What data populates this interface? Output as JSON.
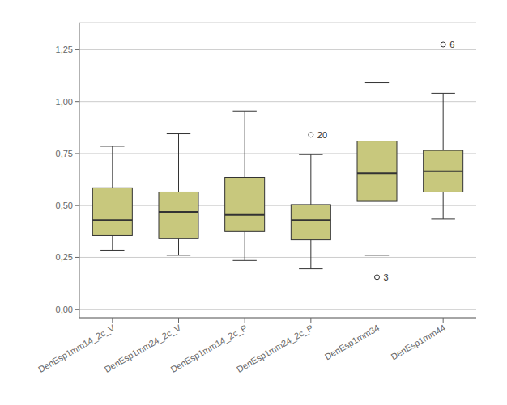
{
  "chart_data": {
    "type": "box",
    "categories": [
      "DenEsp1mm14_2c_V",
      "DenEsp1mm24_2c_V",
      "DenEsp1mm14_2c_P",
      "DenEsp1mm24_2c_P",
      "DenEsp1mm34",
      "DenEsp1mm44"
    ],
    "boxes": [
      {
        "q1": 0.355,
        "median": 0.43,
        "q3": 0.585,
        "whisker_low": 0.285,
        "whisker_high": 0.785,
        "outliers": [],
        "outlier_labels": []
      },
      {
        "q1": 0.34,
        "median": 0.47,
        "q3": 0.565,
        "whisker_low": 0.26,
        "whisker_high": 0.845,
        "outliers": [],
        "outlier_labels": []
      },
      {
        "q1": 0.375,
        "median": 0.455,
        "q3": 0.635,
        "whisker_low": 0.235,
        "whisker_high": 0.955,
        "outliers": [],
        "outlier_labels": []
      },
      {
        "q1": 0.335,
        "median": 0.43,
        "q3": 0.505,
        "whisker_low": 0.195,
        "whisker_high": 0.745,
        "outliers": [
          0.84
        ],
        "outlier_labels": [
          "20"
        ]
      },
      {
        "q1": 0.52,
        "median": 0.655,
        "q3": 0.81,
        "whisker_low": 0.26,
        "whisker_high": 1.09,
        "outliers": [
          0.155
        ],
        "outlier_labels": [
          "3"
        ]
      },
      {
        "q1": 0.565,
        "median": 0.665,
        "q3": 0.765,
        "whisker_low": 0.435,
        "whisker_high": 1.04,
        "outliers": [
          1.275
        ],
        "outlier_labels": [
          "6"
        ]
      }
    ],
    "ylim": [
      -0.04,
      1.38
    ],
    "yticks": [
      {
        "value": 0,
        "label": "0,00"
      },
      {
        "value": 0.25,
        "label": "0,25"
      },
      {
        "value": 0.5,
        "label": "0,50"
      },
      {
        "value": 0.75,
        "label": "0,75"
      },
      {
        "value": 1,
        "label": "1,00"
      },
      {
        "value": 1.25,
        "label": "1,25"
      }
    ],
    "color": "#c8c87d",
    "grid": true
  }
}
